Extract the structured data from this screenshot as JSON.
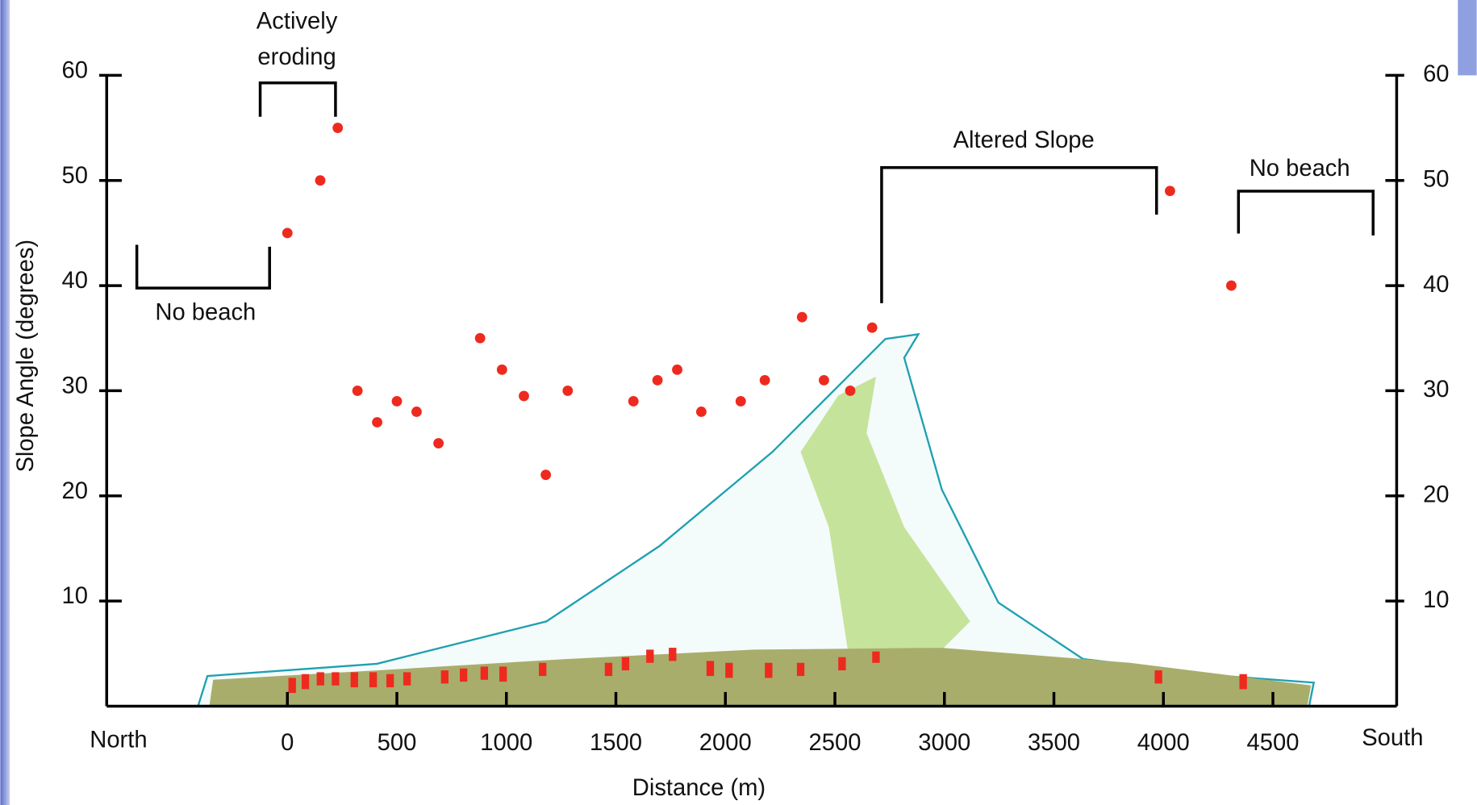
{
  "chart_data": {
    "type": "scatter",
    "x_label": "Distance (m)",
    "y_label": "Slope Angle (degrees)",
    "x": [
      0,
      150,
      230,
      320,
      410,
      500,
      590,
      690,
      880,
      980,
      1080,
      1180,
      1280,
      1580,
      1690,
      1780,
      1890,
      2070,
      2180,
      2350,
      2450,
      2570,
      2670,
      4030,
      4310
    ],
    "values": [
      45,
      50,
      55,
      30,
      27,
      29,
      28,
      25,
      35,
      32,
      29.5,
      22,
      30,
      29,
      31,
      32,
      28,
      29,
      31,
      37,
      31,
      30,
      36,
      49,
      40
    ],
    "color": "#ee2a1f",
    "xlim": [
      -825,
      5065
    ],
    "ylim": [
      0,
      60
    ],
    "xticks": [
      0,
      500,
      1000,
      1500,
      2000,
      2500,
      3000,
      3500,
      4000,
      4500
    ],
    "yticks": [
      10,
      20,
      30,
      40,
      50,
      60
    ],
    "annotations": [
      "Actively",
      "eroding",
      "No beach",
      "Altered Slope",
      "No beach",
      "North",
      "South"
    ]
  }
}
